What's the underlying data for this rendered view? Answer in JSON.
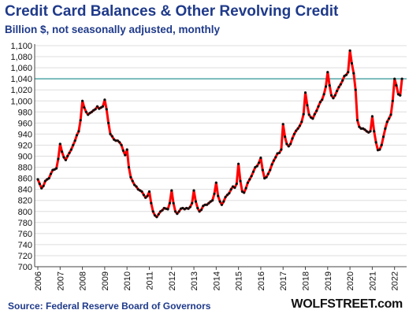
{
  "title": "Credit Card Balances & Other Revolving Credit",
  "subtitle": "Billion $, not seasonally adjusted, monthly",
  "source": "Source: Federal Reserve Board of Governors",
  "brand": "WOLFSTREET.com",
  "colors": {
    "title": "#1f3a8a",
    "line": "#ff0000",
    "markers": "#111111",
    "reference_line": "#008080",
    "grid": "#dddddd"
  },
  "chart_data": {
    "type": "line",
    "title": "Credit Card Balances & Other Revolving Credit",
    "subtitle": "Billion $, not seasonally adjusted, monthly",
    "xlabel": "",
    "ylabel": "",
    "ylim": [
      700,
      1100
    ],
    "xlim": [
      2006,
      2022.4
    ],
    "y_ticks": [
      "700",
      "720",
      "740",
      "760",
      "780",
      "800",
      "820",
      "840",
      "860",
      "880",
      "900",
      "920",
      "940",
      "960",
      "980",
      "1,000",
      "1,020",
      "1,040",
      "1,060",
      "1,080",
      "1,100"
    ],
    "x_ticks": [
      "2006",
      "2007",
      "2008",
      "2009",
      "2010",
      "2011",
      "2012",
      "2013",
      "2014",
      "2015",
      "2016",
      "2017",
      "2018",
      "2019",
      "2020",
      "2021",
      "2022"
    ],
    "grid": "horizontal",
    "reference_line": {
      "y": 1040
    },
    "series": [
      {
        "values": [
          [
            2006.0,
            858
          ],
          [
            2006.083,
            850
          ],
          [
            2006.167,
            842
          ],
          [
            2006.25,
            846
          ],
          [
            2006.333,
            855
          ],
          [
            2006.417,
            858
          ],
          [
            2006.5,
            860
          ],
          [
            2006.583,
            868
          ],
          [
            2006.667,
            875
          ],
          [
            2006.75,
            876
          ],
          [
            2006.833,
            878
          ],
          [
            2006.917,
            895
          ],
          [
            2007.0,
            922
          ],
          [
            2007.083,
            908
          ],
          [
            2007.167,
            898
          ],
          [
            2007.25,
            893
          ],
          [
            2007.333,
            900
          ],
          [
            2007.417,
            906
          ],
          [
            2007.5,
            912
          ],
          [
            2007.583,
            920
          ],
          [
            2007.667,
            928
          ],
          [
            2007.75,
            938
          ],
          [
            2007.833,
            945
          ],
          [
            2007.917,
            965
          ],
          [
            2008.0,
            1000
          ],
          [
            2008.083,
            988
          ],
          [
            2008.167,
            980
          ],
          [
            2008.25,
            975
          ],
          [
            2008.333,
            978
          ],
          [
            2008.417,
            980
          ],
          [
            2008.5,
            983
          ],
          [
            2008.583,
            985
          ],
          [
            2008.667,
            990
          ],
          [
            2008.75,
            986
          ],
          [
            2008.833,
            988
          ],
          [
            2008.917,
            990
          ],
          [
            2009.0,
            1002
          ],
          [
            2009.083,
            985
          ],
          [
            2009.167,
            960
          ],
          [
            2009.25,
            940
          ],
          [
            2009.333,
            936
          ],
          [
            2009.417,
            930
          ],
          [
            2009.5,
            928
          ],
          [
            2009.583,
            928
          ],
          [
            2009.667,
            925
          ],
          [
            2009.75,
            920
          ],
          [
            2009.833,
            910
          ],
          [
            2009.917,
            902
          ],
          [
            2010.0,
            912
          ],
          [
            2010.083,
            880
          ],
          [
            2010.167,
            862
          ],
          [
            2010.25,
            855
          ],
          [
            2010.333,
            848
          ],
          [
            2010.417,
            845
          ],
          [
            2010.5,
            840
          ],
          [
            2010.583,
            838
          ],
          [
            2010.667,
            836
          ],
          [
            2010.75,
            830
          ],
          [
            2010.833,
            825
          ],
          [
            2010.917,
            828
          ],
          [
            2011.0,
            836
          ],
          [
            2011.083,
            815
          ],
          [
            2011.167,
            800
          ],
          [
            2011.25,
            793
          ],
          [
            2011.333,
            790
          ],
          [
            2011.417,
            795
          ],
          [
            2011.5,
            800
          ],
          [
            2011.583,
            802
          ],
          [
            2011.667,
            806
          ],
          [
            2011.75,
            805
          ],
          [
            2011.833,
            804
          ],
          [
            2011.917,
            815
          ],
          [
            2012.0,
            838
          ],
          [
            2012.083,
            815
          ],
          [
            2012.167,
            800
          ],
          [
            2012.25,
            796
          ],
          [
            2012.333,
            800
          ],
          [
            2012.417,
            805
          ],
          [
            2012.5,
            806
          ],
          [
            2012.583,
            804
          ],
          [
            2012.667,
            806
          ],
          [
            2012.75,
            805
          ],
          [
            2012.833,
            808
          ],
          [
            2012.917,
            815
          ],
          [
            2013.0,
            838
          ],
          [
            2013.083,
            818
          ],
          [
            2013.167,
            806
          ],
          [
            2013.25,
            800
          ],
          [
            2013.333,
            803
          ],
          [
            2013.417,
            810
          ],
          [
            2013.5,
            812
          ],
          [
            2013.583,
            812
          ],
          [
            2013.667,
            815
          ],
          [
            2013.75,
            818
          ],
          [
            2013.833,
            820
          ],
          [
            2013.917,
            832
          ],
          [
            2014.0,
            852
          ],
          [
            2014.083,
            828
          ],
          [
            2014.167,
            818
          ],
          [
            2014.25,
            812
          ],
          [
            2014.333,
            818
          ],
          [
            2014.417,
            826
          ],
          [
            2014.5,
            830
          ],
          [
            2014.583,
            833
          ],
          [
            2014.667,
            840
          ],
          [
            2014.75,
            845
          ],
          [
            2014.833,
            843
          ],
          [
            2014.917,
            850
          ],
          [
            2015.0,
            886
          ],
          [
            2015.083,
            855
          ],
          [
            2015.167,
            836
          ],
          [
            2015.25,
            834
          ],
          [
            2015.333,
            842
          ],
          [
            2015.417,
            852
          ],
          [
            2015.5,
            858
          ],
          [
            2015.583,
            864
          ],
          [
            2015.667,
            872
          ],
          [
            2015.75,
            880
          ],
          [
            2015.833,
            882
          ],
          [
            2015.917,
            888
          ],
          [
            2016.0,
            897
          ],
          [
            2016.083,
            875
          ],
          [
            2016.167,
            860
          ],
          [
            2016.25,
            862
          ],
          [
            2016.333,
            868
          ],
          [
            2016.417,
            875
          ],
          [
            2016.5,
            885
          ],
          [
            2016.583,
            892
          ],
          [
            2016.667,
            898
          ],
          [
            2016.75,
            905
          ],
          [
            2016.833,
            906
          ],
          [
            2016.917,
            912
          ],
          [
            2017.0,
            958
          ],
          [
            2017.083,
            935
          ],
          [
            2017.167,
            922
          ],
          [
            2017.25,
            918
          ],
          [
            2017.333,
            922
          ],
          [
            2017.417,
            932
          ],
          [
            2017.5,
            940
          ],
          [
            2017.583,
            946
          ],
          [
            2017.667,
            950
          ],
          [
            2017.75,
            955
          ],
          [
            2017.833,
            962
          ],
          [
            2017.917,
            976
          ],
          [
            2018.0,
            1015
          ],
          [
            2018.083,
            992
          ],
          [
            2018.167,
            975
          ],
          [
            2018.25,
            970
          ],
          [
            2018.333,
            968
          ],
          [
            2018.417,
            976
          ],
          [
            2018.5,
            982
          ],
          [
            2018.583,
            990
          ],
          [
            2018.667,
            998
          ],
          [
            2018.75,
            1002
          ],
          [
            2018.833,
            1012
          ],
          [
            2018.917,
            1026
          ],
          [
            2019.0,
            1052
          ],
          [
            2019.083,
            1028
          ],
          [
            2019.167,
            1010
          ],
          [
            2019.25,
            1005
          ],
          [
            2019.333,
            1010
          ],
          [
            2019.417,
            1018
          ],
          [
            2019.5,
            1025
          ],
          [
            2019.583,
            1030
          ],
          [
            2019.667,
            1037
          ],
          [
            2019.75,
            1045
          ],
          [
            2019.833,
            1047
          ],
          [
            2019.917,
            1052
          ],
          [
            2020.0,
            1091
          ],
          [
            2020.083,
            1068
          ],
          [
            2020.167,
            1050
          ],
          [
            2020.25,
            1020
          ],
          [
            2020.333,
            965
          ],
          [
            2020.417,
            953
          ],
          [
            2020.5,
            950
          ],
          [
            2020.583,
            950
          ],
          [
            2020.667,
            948
          ],
          [
            2020.75,
            945
          ],
          [
            2020.833,
            943
          ],
          [
            2020.917,
            945
          ],
          [
            2021.0,
            972
          ],
          [
            2021.083,
            945
          ],
          [
            2021.167,
            925
          ],
          [
            2021.25,
            911
          ],
          [
            2021.333,
            912
          ],
          [
            2021.417,
            920
          ],
          [
            2021.5,
            935
          ],
          [
            2021.583,
            950
          ],
          [
            2021.667,
            962
          ],
          [
            2021.75,
            968
          ],
          [
            2021.833,
            975
          ],
          [
            2021.917,
            1000
          ],
          [
            2022.0,
            1040
          ],
          [
            2022.083,
            1028
          ],
          [
            2022.167,
            1012
          ],
          [
            2022.25,
            1010
          ],
          [
            2022.333,
            1040
          ]
        ]
      }
    ]
  }
}
